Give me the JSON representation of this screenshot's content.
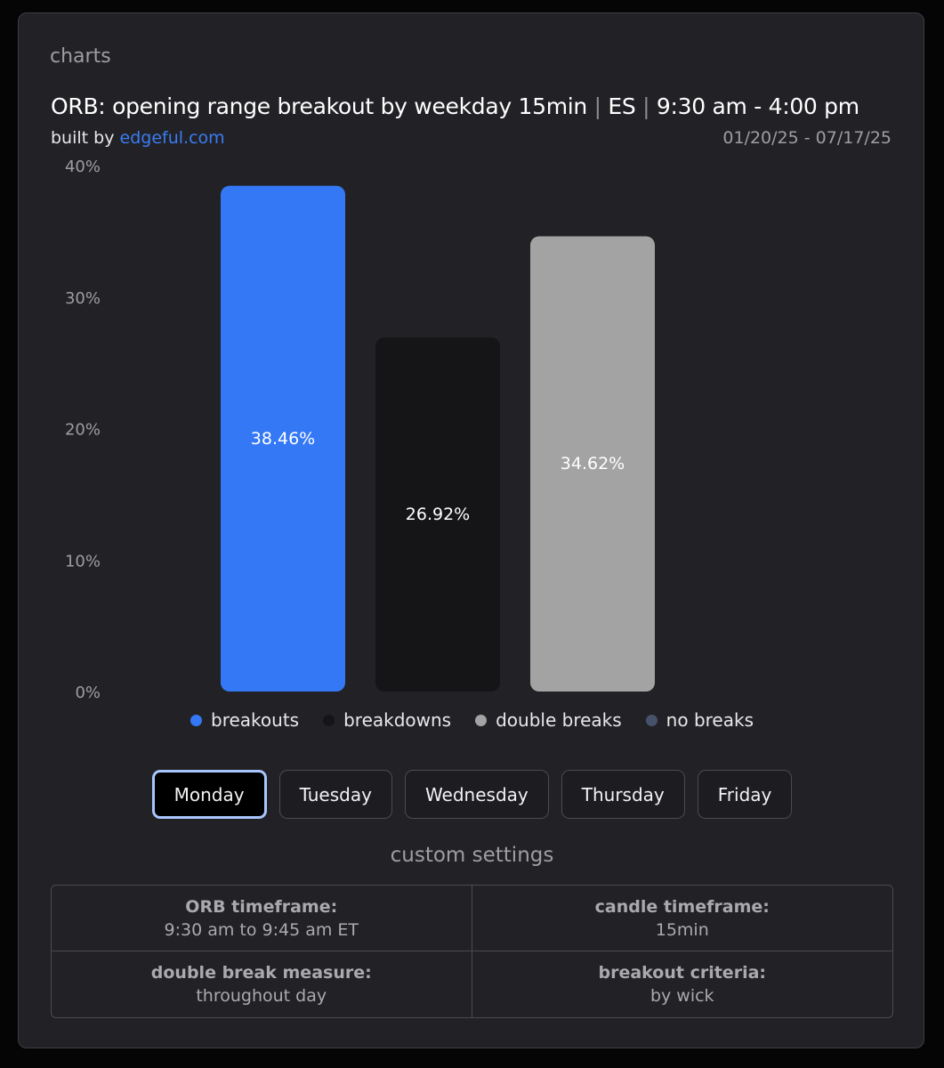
{
  "header": {
    "section_label": "charts",
    "title_main": "ORB: opening range breakout by weekday 15min",
    "title_sep": "|",
    "title_symbol": "ES",
    "title_session": "9:30 am - 4:00 pm",
    "built_by_prefix": "built by",
    "built_by_link": "edgeful.com",
    "date_range": "01/20/25 - 07/17/25"
  },
  "chart_data": {
    "type": "bar",
    "categories": [
      "breakouts",
      "breakdowns",
      "double breaks"
    ],
    "values": [
      38.46,
      26.92,
      34.62
    ],
    "value_labels": [
      "38.46%",
      "26.92%",
      "34.62%"
    ],
    "colors": [
      "#3478f6",
      "#151517",
      "#a3a3a3"
    ],
    "ylim": [
      0,
      40
    ],
    "yticks": [
      0,
      10,
      20,
      30,
      40
    ],
    "ytick_labels": [
      "0%",
      "10%",
      "20%",
      "30%",
      "40%"
    ],
    "title": "ORB: opening range breakout by weekday 15min | ES | 9:30 am - 4:00 pm",
    "xlabel": "",
    "ylabel": "",
    "grid": false,
    "legend": [
      {
        "label": "breakouts",
        "color": "#3478f6"
      },
      {
        "label": "breakdowns",
        "color": "#151517"
      },
      {
        "label": "double breaks",
        "color": "#a3a3a3"
      },
      {
        "label": "no breaks",
        "color": "#46526a"
      }
    ]
  },
  "weekdays": {
    "items": [
      "Monday",
      "Tuesday",
      "Wednesday",
      "Thursday",
      "Friday"
    ],
    "selected": "Monday"
  },
  "settings": {
    "title": "custom settings",
    "orb_timeframe_label": "ORB timeframe:",
    "orb_timeframe_value": "9:30 am to 9:45 am ET",
    "candle_timeframe_label": "candle timeframe:",
    "candle_timeframe_value": "15min",
    "double_break_label": "double break measure:",
    "double_break_value": "throughout day",
    "breakout_criteria_label": "breakout criteria:",
    "breakout_criteria_value": "by wick"
  }
}
